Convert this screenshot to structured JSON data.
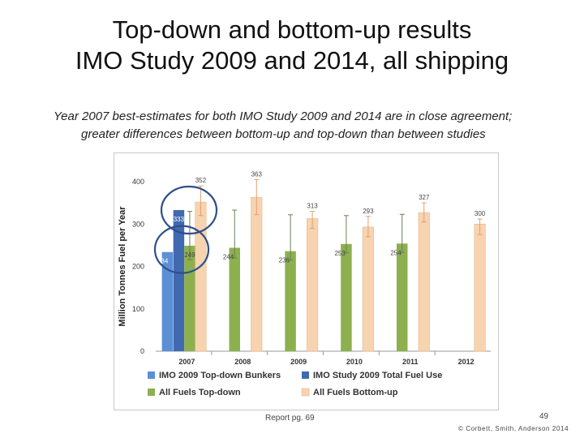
{
  "slide": {
    "title_line1": "Top-down and bottom-up results",
    "title_line2": "IMO Study 2009 and 2014, all shipping",
    "subtitle_line1": "Year 2007 best-estimates for both IMO Study 2009 and 2014 are in close agreement;",
    "subtitle_line2": "greater differences between bottom-up and top-down than between studies",
    "caption": "Report pg. 69",
    "page_number": "49",
    "copyright": "© Corbett, Smith, Anderson 2014"
  },
  "chart_data": {
    "type": "bar",
    "ylabel": "Million Tonnes Fuel per Year",
    "ylim": [
      0,
      400
    ],
    "yticks": [
      "0",
      "100",
      "200",
      "300",
      "400"
    ],
    "categories": [
      "2007",
      "2008",
      "2009",
      "2010",
      "2011",
      "2012"
    ],
    "series": [
      {
        "name": "IMO 2009 Top-down Bunkers",
        "color": "#5b8fd6",
        "values": [
          234,
          null,
          null,
          null,
          null,
          null
        ],
        "labels": [
          "234",
          "",
          "",
          "",
          "",
          ""
        ]
      },
      {
        "name": "IMO Study 2009 Total Fuel Use",
        "color": "#4169b0",
        "values": [
          333,
          null,
          null,
          null,
          null,
          null
        ],
        "labels": [
          "333",
          "",
          "",
          "",
          "",
          ""
        ]
      },
      {
        "name": "All Fuels Top-down",
        "color": "#8db04f",
        "values": [
          249,
          244,
          236,
          253,
          254,
          null
        ],
        "labels": [
          "249",
          "244",
          "236",
          "253",
          "254",
          ""
        ]
      },
      {
        "name": "All Fuels Bottom-up",
        "color": "#f8d3b0",
        "values": [
          352,
          363,
          313,
          293,
          327,
          300
        ],
        "labels": [
          "352",
          "363",
          "313",
          "293",
          "327",
          "300"
        ]
      }
    ],
    "error_bars": {
      "All Fuels Top-down": [
        [
          216,
          330
        ],
        [
          220,
          333
        ],
        [
          215,
          322
        ],
        [
          232,
          320
        ],
        [
          233,
          323
        ],
        null
      ],
      "All Fuels Bottom-up": [
        [
          320,
          390
        ],
        [
          322,
          405
        ],
        [
          290,
          330
        ],
        [
          270,
          318
        ],
        [
          305,
          350
        ],
        [
          275,
          312
        ]
      ]
    },
    "legend_position": "bottom",
    "grid": false,
    "annotations": [
      "ellipse around 2007 top-down values",
      "ellipse around 2007 bottom-up values"
    ]
  }
}
